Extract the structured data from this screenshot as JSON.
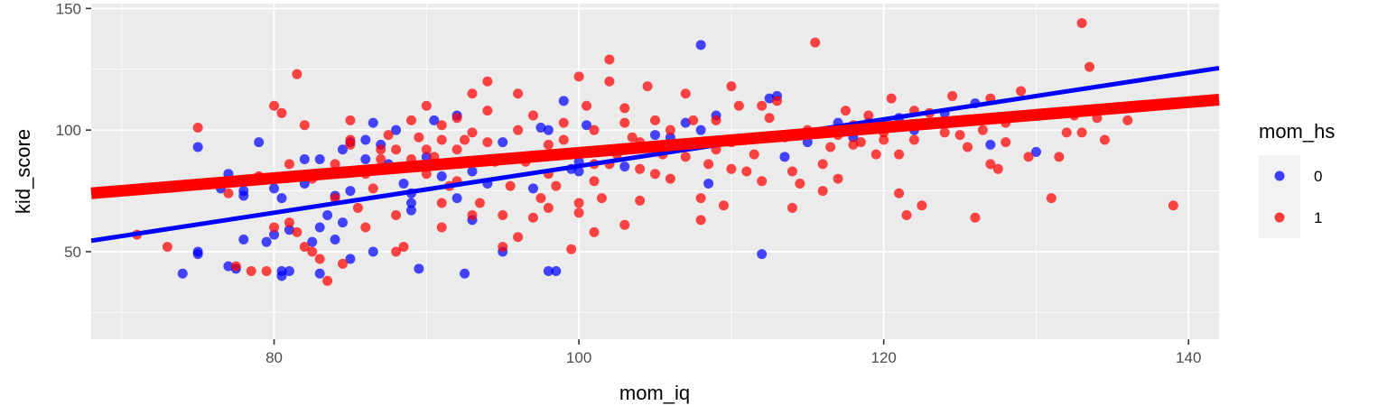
{
  "chart_data": {
    "type": "scatter",
    "xlabel": "mom_iq",
    "ylabel": "kid_score",
    "xlim": [
      68,
      142
    ],
    "ylim": [
      14,
      152
    ],
    "x_ticks": [
      80,
      100,
      120,
      140
    ],
    "y_ticks": [
      50,
      100,
      150
    ],
    "grid": true,
    "legend": {
      "title": "mom_hs",
      "position": "right",
      "entries": [
        {
          "label": "0",
          "color": "#0000ff"
        },
        {
          "label": "1",
          "color": "#ff0000"
        }
      ]
    },
    "series": [
      {
        "name": "0",
        "color": "#0000ff",
        "points": [
          [
            74,
            41
          ],
          [
            75,
            93
          ],
          [
            75,
            50
          ],
          [
            75,
            49
          ],
          [
            76.5,
            76
          ],
          [
            77,
            44
          ],
          [
            77,
            82
          ],
          [
            77.5,
            43
          ],
          [
            78,
            55
          ],
          [
            78,
            75
          ],
          [
            78,
            73
          ],
          [
            79,
            95
          ],
          [
            79.5,
            54
          ],
          [
            80,
            57
          ],
          [
            80,
            76
          ],
          [
            80.5,
            42
          ],
          [
            80.5,
            40
          ],
          [
            80.5,
            72
          ],
          [
            81,
            59
          ],
          [
            81,
            42
          ],
          [
            82,
            78
          ],
          [
            82,
            88
          ],
          [
            82.5,
            54
          ],
          [
            83,
            41
          ],
          [
            83,
            88
          ],
          [
            83,
            60
          ],
          [
            83.5,
            65
          ],
          [
            84,
            73
          ],
          [
            84,
            55
          ],
          [
            84.5,
            62
          ],
          [
            84.5,
            92
          ],
          [
            85,
            47
          ],
          [
            85,
            95
          ],
          [
            85,
            75
          ],
          [
            86,
            96
          ],
          [
            86,
            88
          ],
          [
            86.5,
            103
          ],
          [
            86.5,
            50
          ],
          [
            87,
            94
          ],
          [
            87.5,
            86
          ],
          [
            88,
            100
          ],
          [
            88.5,
            78
          ],
          [
            89,
            67
          ],
          [
            89,
            74
          ],
          [
            89,
            70
          ],
          [
            89.5,
            43
          ],
          [
            90,
            89
          ],
          [
            90.5,
            104
          ],
          [
            91,
            81
          ],
          [
            92,
            72
          ],
          [
            92,
            106
          ],
          [
            92.5,
            41
          ],
          [
            93,
            83
          ],
          [
            93,
            63
          ],
          [
            94,
            78
          ],
          [
            95,
            95
          ],
          [
            95,
            50
          ],
          [
            97,
            76
          ],
          [
            97.5,
            101
          ],
          [
            98,
            100
          ],
          [
            98,
            42
          ],
          [
            98.5,
            42
          ],
          [
            99,
            112
          ],
          [
            99.5,
            84
          ],
          [
            100,
            87
          ],
          [
            100,
            83
          ],
          [
            100.5,
            102
          ],
          [
            103,
            85
          ],
          [
            105,
            98
          ],
          [
            106,
            97
          ],
          [
            107,
            103
          ],
          [
            108,
            135
          ],
          [
            108,
            100
          ],
          [
            108.5,
            78
          ],
          [
            109,
            106
          ],
          [
            112,
            49
          ],
          [
            112.5,
            113
          ],
          [
            113,
            114
          ],
          [
            113.5,
            89
          ],
          [
            115,
            95
          ],
          [
            117,
            103
          ],
          [
            118,
            97
          ],
          [
            119,
            103
          ],
          [
            121,
            105
          ],
          [
            122,
            100
          ],
          [
            124,
            107
          ],
          [
            126,
            111
          ],
          [
            127,
            94
          ],
          [
            130,
            91
          ]
        ]
      },
      {
        "name": "1",
        "color": "#ff0000",
        "points": [
          [
            71,
            57
          ],
          [
            73,
            52
          ],
          [
            75,
            101
          ],
          [
            77,
            74
          ],
          [
            77.5,
            44
          ],
          [
            78.5,
            42
          ],
          [
            79,
            81
          ],
          [
            79.5,
            42
          ],
          [
            80,
            60
          ],
          [
            80,
            110
          ],
          [
            80.5,
            107
          ],
          [
            81,
            86
          ],
          [
            81,
            62
          ],
          [
            81.5,
            58
          ],
          [
            81.5,
            123
          ],
          [
            82,
            102
          ],
          [
            82,
            52
          ],
          [
            82.5,
            80
          ],
          [
            82.5,
            50
          ],
          [
            83,
            47
          ],
          [
            83.5,
            38
          ],
          [
            84,
            86
          ],
          [
            84,
            72
          ],
          [
            84.5,
            45
          ],
          [
            85,
            94
          ],
          [
            85,
            96
          ],
          [
            85,
            104
          ],
          [
            85.5,
            68
          ],
          [
            86,
            82
          ],
          [
            86,
            60
          ],
          [
            86.5,
            76
          ],
          [
            87,
            88
          ],
          [
            87,
            92
          ],
          [
            87.5,
            98
          ],
          [
            88,
            65
          ],
          [
            88,
            92
          ],
          [
            88,
            50
          ],
          [
            88.5,
            52
          ],
          [
            89,
            88
          ],
          [
            89,
            104
          ],
          [
            89.5,
            97
          ],
          [
            90,
            92
          ],
          [
            90,
            85
          ],
          [
            90,
            82
          ],
          [
            90,
            110
          ],
          [
            90.5,
            89
          ],
          [
            91,
            60
          ],
          [
            91,
            96
          ],
          [
            91,
            70
          ],
          [
            91,
            102
          ],
          [
            91.5,
            77
          ],
          [
            92,
            105
          ],
          [
            92,
            79
          ],
          [
            92,
            92
          ],
          [
            92.5,
            96
          ],
          [
            93,
            99
          ],
          [
            93,
            115
          ],
          [
            93,
            65
          ],
          [
            93.5,
            70
          ],
          [
            94,
            108
          ],
          [
            94,
            120
          ],
          [
            94,
            95
          ],
          [
            94.5,
            87
          ],
          [
            95,
            65
          ],
          [
            95,
            52
          ],
          [
            95.5,
            77
          ],
          [
            96,
            56
          ],
          [
            96,
            100
          ],
          [
            96,
            115
          ],
          [
            96.5,
            87
          ],
          [
            97,
            64
          ],
          [
            97,
            106
          ],
          [
            97.5,
            72
          ],
          [
            98,
            82
          ],
          [
            98,
            94
          ],
          [
            98,
            68
          ],
          [
            98.5,
            77
          ],
          [
            99,
            103
          ],
          [
            99,
            96
          ],
          [
            99,
            90
          ],
          [
            99.5,
            51
          ],
          [
            100,
            66
          ],
          [
            100,
            91
          ],
          [
            100,
            70
          ],
          [
            100,
            122
          ],
          [
            100.5,
            110
          ],
          [
            101,
            58
          ],
          [
            101,
            86
          ],
          [
            101,
            79
          ],
          [
            101,
            100
          ],
          [
            101.5,
            72
          ],
          [
            102,
            129
          ],
          [
            102,
            120
          ],
          [
            102,
            86
          ],
          [
            102.5,
            90
          ],
          [
            103,
            61
          ],
          [
            103,
            103
          ],
          [
            103,
            109
          ],
          [
            103.5,
            97
          ],
          [
            104,
            84
          ],
          [
            104,
            95
          ],
          [
            104,
            71
          ],
          [
            104.5,
            118
          ],
          [
            105,
            82
          ],
          [
            105,
            104
          ],
          [
            105.5,
            90
          ],
          [
            106,
            80
          ],
          [
            106,
            100
          ],
          [
            106.5,
            93
          ],
          [
            107,
            115
          ],
          [
            107,
            89
          ],
          [
            107.5,
            104
          ],
          [
            108,
            63
          ],
          [
            108,
            72
          ],
          [
            108.5,
            86
          ],
          [
            109,
            92
          ],
          [
            109,
            104
          ],
          [
            109.5,
            69
          ],
          [
            110,
            84
          ],
          [
            110,
            95
          ],
          [
            110,
            118
          ],
          [
            110.5,
            110
          ],
          [
            111,
            83
          ],
          [
            111.5,
            90
          ],
          [
            112,
            79
          ],
          [
            112,
            110
          ],
          [
            112.5,
            105
          ],
          [
            113,
            112
          ],
          [
            113.5,
            97
          ],
          [
            114,
            68
          ],
          [
            114,
            83
          ],
          [
            114.5,
            78
          ],
          [
            115,
            100
          ],
          [
            115.5,
            136
          ],
          [
            116,
            75
          ],
          [
            116,
            86
          ],
          [
            116.5,
            93
          ],
          [
            117,
            80
          ],
          [
            117,
            98
          ],
          [
            117.5,
            108
          ],
          [
            118,
            94
          ],
          [
            118,
            102
          ],
          [
            118.5,
            95
          ],
          [
            119,
            106
          ],
          [
            119.5,
            90
          ],
          [
            120,
            96
          ],
          [
            120,
            99
          ],
          [
            120.5,
            113
          ],
          [
            121,
            74
          ],
          [
            121,
            90
          ],
          [
            121.5,
            65
          ],
          [
            122,
            96
          ],
          [
            122,
            108
          ],
          [
            122.5,
            69
          ],
          [
            123,
            107
          ],
          [
            124,
            99
          ],
          [
            124.5,
            114
          ],
          [
            125,
            98
          ],
          [
            125.5,
            93
          ],
          [
            126,
            64
          ],
          [
            126.5,
            100
          ],
          [
            127,
            113
          ],
          [
            127,
            86
          ],
          [
            127.5,
            84
          ],
          [
            128,
            95
          ],
          [
            128,
            103
          ],
          [
            129,
            116
          ],
          [
            129.5,
            89
          ],
          [
            131,
            72
          ],
          [
            131.5,
            89
          ],
          [
            132,
            99
          ],
          [
            132.5,
            106
          ],
          [
            133,
            144
          ],
          [
            133,
            99
          ],
          [
            133.5,
            126
          ],
          [
            134,
            105
          ],
          [
            134.5,
            96
          ],
          [
            136,
            104
          ],
          [
            136.5,
            110
          ],
          [
            139,
            69
          ]
        ]
      }
    ],
    "fit_lines": [
      {
        "name": "0",
        "color": "#0000ff",
        "x": [
          68,
          142
        ],
        "y": [
          54.5,
          125.5
        ]
      },
      {
        "name": "1",
        "color": "#ff0000",
        "x": [
          68,
          142
        ],
        "y": [
          74.0,
          112.5
        ]
      }
    ]
  }
}
